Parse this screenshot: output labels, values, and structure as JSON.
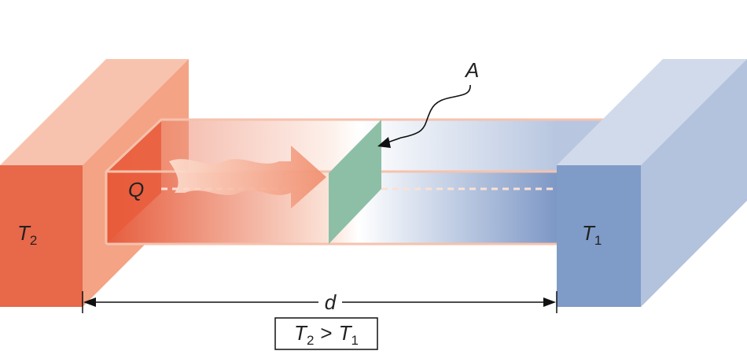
{
  "labels": {
    "hot_block": {
      "symbol": "T",
      "subscript": "2"
    },
    "cold_block": {
      "symbol": "T",
      "subscript": "1"
    },
    "heat": "Q",
    "area": "A",
    "distance": "d"
  },
  "condition": {
    "left": {
      "symbol": "T",
      "subscript": "2"
    },
    "operator": ">",
    "right": {
      "symbol": "T",
      "subscript": "1"
    }
  }
}
